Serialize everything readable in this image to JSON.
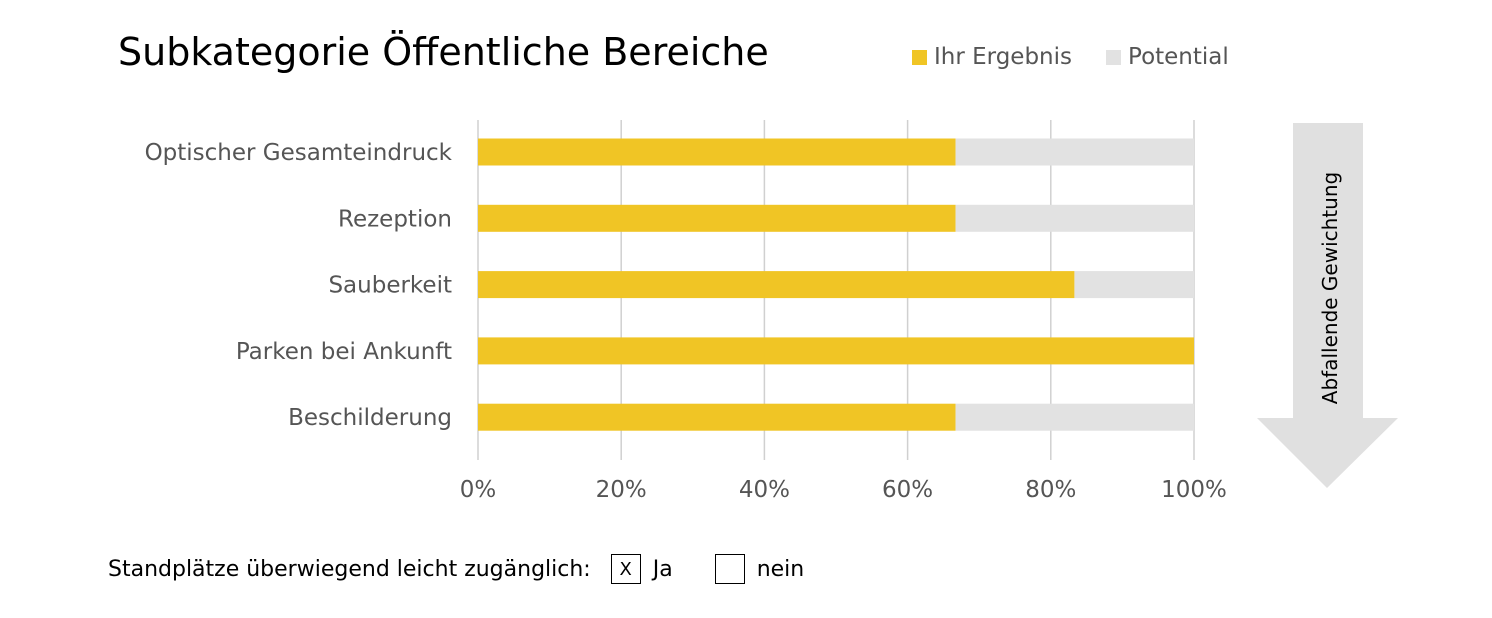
{
  "chart_data": {
    "type": "bar",
    "orientation": "horizontal",
    "stacked": true,
    "title": "Subkategorie Öffentliche Bereiche",
    "categories": [
      "Optischer Gesamteindruck",
      "Rezeption",
      "Sauberkeit",
      "Parken bei Ankunft",
      "Beschilderung"
    ],
    "series": [
      {
        "name": "Ihr Ergebnis",
        "color": "#F0C525",
        "values": [
          66.7,
          66.7,
          83.3,
          100,
          66.7
        ]
      },
      {
        "name": "Potential",
        "color": "#E2E2E2",
        "values": [
          33.3,
          33.3,
          16.7,
          0,
          33.3
        ]
      }
    ],
    "xlim": [
      0,
      100
    ],
    "xticks": [
      "0%",
      "20%",
      "40%",
      "60%",
      "80%",
      "100%"
    ],
    "grid": true,
    "legend": "top-right",
    "annotation": "Abfallende Gewichtung"
  },
  "footer": {
    "label": "Standplätze überwiegend leicht zugänglich:",
    "option_yes_mark": "X",
    "option_yes": "Ja",
    "option_no_mark": "",
    "option_no": "nein"
  }
}
